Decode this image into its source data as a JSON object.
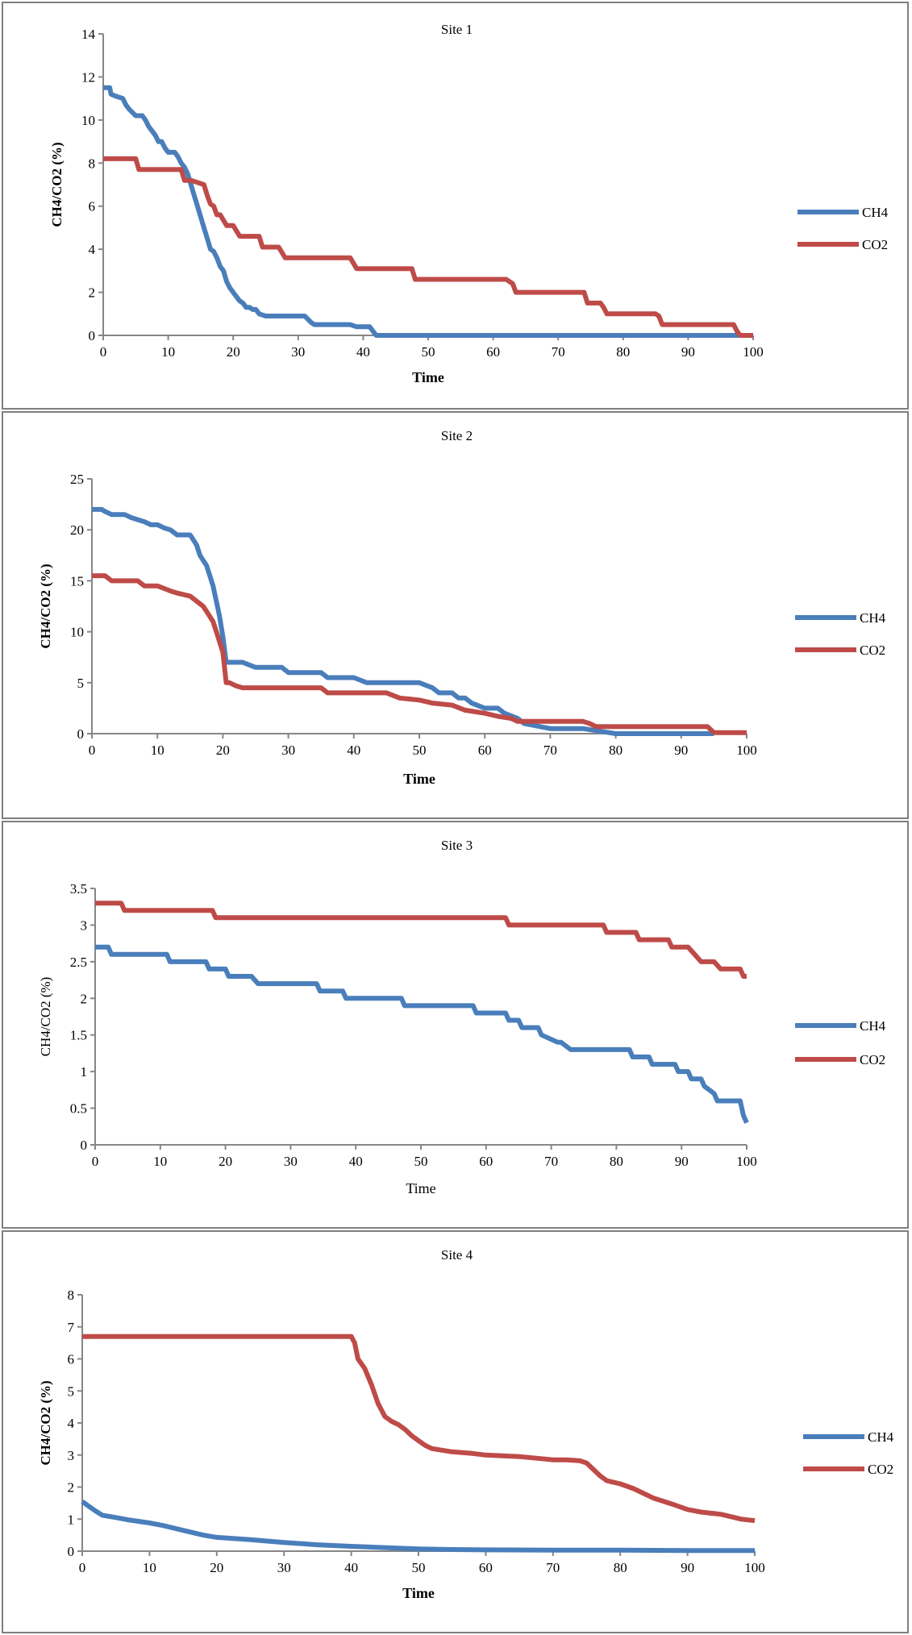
{
  "chart_data": [
    {
      "type": "line",
      "title": "Site 1",
      "xlabel": "Time",
      "ylabel": "CH4/CO2 (%)",
      "label_bold": true,
      "xlim": [
        0,
        100
      ],
      "ylim": [
        0,
        14
      ],
      "xticks": [
        0,
        10,
        20,
        30,
        40,
        50,
        60,
        70,
        80,
        90,
        100
      ],
      "yticks": [
        0,
        2,
        4,
        6,
        8,
        10,
        12,
        14
      ],
      "series": [
        {
          "name": "CH4",
          "color": "#4a7ebb",
          "x": [
            0,
            1,
            1.2,
            2,
            3,
            3.5,
            4,
            5,
            6,
            6.5,
            7,
            7.5,
            8,
            8.5,
            9,
            9.5,
            10,
            10.5,
            11,
            11.5,
            12,
            12.5,
            13,
            13.5,
            14,
            14.5,
            15,
            15.5,
            16,
            16.5,
            17,
            17.5,
            18,
            18.5,
            19,
            19.5,
            20,
            20.5,
            21,
            21.5,
            22,
            22.5,
            23,
            23.5,
            24,
            25,
            25.5,
            26,
            28,
            30,
            31,
            32,
            32.5,
            34,
            38,
            39,
            40,
            41,
            41.5,
            42,
            42.5,
            45,
            60,
            80,
            97,
            100
          ],
          "y": [
            11.5,
            11.5,
            11.2,
            11.1,
            11.0,
            10.7,
            10.5,
            10.2,
            10.2,
            10.0,
            9.7,
            9.5,
            9.3,
            9.0,
            9.0,
            8.7,
            8.5,
            8.5,
            8.5,
            8.3,
            8.0,
            7.8,
            7.5,
            7.0,
            6.5,
            6.0,
            5.5,
            5.0,
            4.5,
            4.0,
            3.9,
            3.6,
            3.2,
            3.0,
            2.5,
            2.2,
            2.0,
            1.8,
            1.6,
            1.5,
            1.3,
            1.3,
            1.2,
            1.2,
            1.0,
            0.9,
            0.9,
            0.9,
            0.9,
            0.9,
            0.9,
            0.6,
            0.5,
            0.5,
            0.5,
            0.4,
            0.4,
            0.4,
            0.2,
            0.0,
            0.0,
            0.0,
            0.0,
            0.0,
            0.0,
            0.0
          ]
        },
        {
          "name": "CO2",
          "color": "#be4b48",
          "x": [
            0,
            5,
            5.5,
            11,
            12,
            12.5,
            13.5,
            14.5,
            15.5,
            16,
            16.5,
            17,
            17.5,
            18,
            19,
            20,
            21,
            22,
            22.5,
            24,
            24.5,
            26,
            27,
            28,
            30,
            35,
            38,
            39,
            40,
            45,
            47.5,
            48,
            50,
            55,
            62,
            62.5,
            63,
            63.5,
            64,
            70,
            74,
            74.5,
            76,
            76.5,
            77,
            77.5,
            80,
            85,
            85.5,
            86,
            90,
            95,
            97,
            97.5,
            98,
            100
          ],
          "y": [
            8.2,
            8.2,
            7.7,
            7.7,
            7.7,
            7.2,
            7.2,
            7.1,
            7.0,
            6.5,
            6.1,
            6.0,
            5.6,
            5.6,
            5.1,
            5.1,
            4.6,
            4.6,
            4.6,
            4.6,
            4.1,
            4.1,
            4.1,
            3.6,
            3.6,
            3.6,
            3.6,
            3.1,
            3.1,
            3.1,
            3.1,
            2.6,
            2.6,
            2.6,
            2.6,
            2.5,
            2.4,
            2.0,
            2.0,
            2.0,
            2.0,
            1.5,
            1.5,
            1.5,
            1.3,
            1.0,
            1.0,
            1.0,
            0.9,
            0.5,
            0.5,
            0.5,
            0.5,
            0.2,
            0.0,
            0.0
          ]
        }
      ]
    },
    {
      "type": "line",
      "title": "Site 2",
      "xlabel": "Time",
      "ylabel": "CH4/CO2 (%)",
      "label_bold": true,
      "xlim": [
        0,
        100
      ],
      "ylim": [
        0,
        25
      ],
      "xticks": [
        0,
        10,
        20,
        30,
        40,
        50,
        60,
        70,
        80,
        90,
        100
      ],
      "yticks": [
        0,
        5,
        10,
        15,
        20,
        25
      ],
      "series": [
        {
          "name": "CH4",
          "color": "#4a7ebb",
          "x": [
            0,
            1.5,
            2,
            3,
            5,
            6,
            7,
            8,
            9,
            10,
            11,
            12,
            13,
            14,
            15,
            15.5,
            16,
            16.5,
            17,
            17.5,
            18,
            18.5,
            19,
            19.5,
            20,
            20.5,
            21,
            23,
            25,
            27,
            29,
            30,
            33,
            35,
            36,
            38,
            40,
            42,
            45,
            48,
            50,
            52,
            53,
            55,
            56,
            57,
            58,
            60,
            62,
            63,
            65,
            66,
            70,
            75,
            80,
            90,
            95
          ],
          "y": [
            22,
            22,
            21.8,
            21.5,
            21.5,
            21.2,
            21.0,
            20.8,
            20.5,
            20.5,
            20.2,
            20.0,
            19.5,
            19.5,
            19.5,
            19.0,
            18.5,
            17.5,
            17.0,
            16.5,
            15.5,
            14.5,
            13.0,
            11.5,
            9.5,
            7.0,
            7.0,
            7.0,
            6.5,
            6.5,
            6.5,
            6.0,
            6.0,
            6.0,
            5.5,
            5.5,
            5.5,
            5.0,
            5.0,
            5.0,
            5.0,
            4.5,
            4.0,
            4.0,
            3.5,
            3.5,
            3.0,
            2.5,
            2.5,
            2.0,
            1.5,
            1.0,
            0.5,
            0.5,
            0.0,
            0.0,
            0.0
          ]
        },
        {
          "name": "CO2",
          "color": "#be4b48",
          "x": [
            0,
            2,
            3,
            7,
            8,
            10,
            12,
            13,
            15,
            16,
            17,
            17.5,
            18,
            18.5,
            19,
            19.5,
            20,
            20.5,
            21,
            22,
            23,
            25,
            30,
            35,
            36,
            40,
            45,
            47,
            50,
            52,
            55,
            57,
            60,
            62,
            64,
            65,
            70,
            75,
            76,
            77,
            80,
            90,
            94,
            95,
            100
          ],
          "y": [
            15.5,
            15.5,
            15.0,
            15.0,
            14.5,
            14.5,
            14.0,
            13.8,
            13.5,
            13.0,
            12.5,
            12.0,
            11.5,
            11.0,
            10.0,
            9.0,
            8.0,
            5.0,
            5.0,
            4.7,
            4.5,
            4.5,
            4.5,
            4.5,
            4.0,
            4.0,
            4.0,
            3.5,
            3.3,
            3.0,
            2.8,
            2.3,
            2.0,
            1.7,
            1.5,
            1.2,
            1.2,
            1.2,
            1.0,
            0.7,
            0.7,
            0.7,
            0.7,
            0.1,
            0.1
          ]
        }
      ]
    },
    {
      "type": "line",
      "title": "Site 3",
      "xlabel": "Time",
      "ylabel": "CH4/CO2 (%)",
      "label_bold": false,
      "xlim": [
        0,
        100
      ],
      "ylim": [
        0,
        3.5
      ],
      "xticks": [
        0,
        10,
        20,
        30,
        40,
        50,
        60,
        70,
        80,
        90,
        100
      ],
      "yticks": [
        "0",
        "0.5",
        "1",
        "1.5",
        "2",
        "2.5",
        "3",
        "3.5"
      ],
      "series": [
        {
          "name": "CH4",
          "color": "#4a7ebb",
          "x": [
            0,
            2,
            2.5,
            10,
            11,
            11.5,
            17,
            17.5,
            20,
            20.5,
            24,
            25,
            34,
            34.5,
            38,
            38.5,
            47,
            47.5,
            58,
            58.5,
            63,
            63.5,
            65,
            65.5,
            68,
            68.5,
            71,
            71.5,
            73,
            73.5,
            82,
            82.5,
            85,
            85.5,
            89,
            89.5,
            91,
            91.5,
            93,
            93.5,
            95,
            95.5,
            99,
            99.5,
            100
          ],
          "y": [
            2.7,
            2.7,
            2.6,
            2.6,
            2.6,
            2.5,
            2.5,
            2.4,
            2.4,
            2.3,
            2.3,
            2.2,
            2.2,
            2.1,
            2.1,
            2.0,
            2.0,
            1.9,
            1.9,
            1.8,
            1.8,
            1.7,
            1.7,
            1.6,
            1.6,
            1.5,
            1.4,
            1.4,
            1.3,
            1.3,
            1.3,
            1.2,
            1.2,
            1.1,
            1.1,
            1.0,
            1.0,
            0.9,
            0.9,
            0.8,
            0.7,
            0.6,
            0.6,
            0.4,
            0.3
          ]
        },
        {
          "name": "CO2",
          "color": "#be4b48",
          "x": [
            0,
            4,
            4.5,
            18,
            18.5,
            63,
            63.5,
            78,
            78.5,
            83,
            83.5,
            88,
            88.5,
            90,
            91,
            92,
            93,
            94,
            95,
            96,
            98,
            99,
            99.5,
            100
          ],
          "y": [
            3.3,
            3.3,
            3.2,
            3.2,
            3.1,
            3.1,
            3.0,
            3.0,
            2.9,
            2.9,
            2.8,
            2.8,
            2.7,
            2.7,
            2.7,
            2.6,
            2.5,
            2.5,
            2.5,
            2.4,
            2.4,
            2.4,
            2.3,
            2.3
          ]
        }
      ]
    },
    {
      "type": "line",
      "title": "Site 4",
      "xlabel": "Time",
      "ylabel": "CH4/CO2 (%)",
      "label_bold": true,
      "xlim": [
        0,
        100
      ],
      "ylim": [
        0,
        8
      ],
      "xticks": [
        0,
        10,
        20,
        30,
        40,
        50,
        60,
        70,
        80,
        90,
        100
      ],
      "yticks": [
        0,
        1,
        2,
        3,
        4,
        5,
        6,
        7,
        8
      ],
      "series": [
        {
          "name": "CH4",
          "color": "#4a7ebb",
          "x": [
            0,
            1,
            2,
            3,
            5,
            7,
            10,
            12,
            15,
            18,
            20,
            25,
            30,
            35,
            40,
            45,
            50,
            55,
            60,
            70,
            80,
            90,
            100
          ],
          "y": [
            1.55,
            1.4,
            1.25,
            1.12,
            1.05,
            0.97,
            0.88,
            0.8,
            0.65,
            0.5,
            0.43,
            0.36,
            0.27,
            0.2,
            0.15,
            0.11,
            0.07,
            0.05,
            0.04,
            0.03,
            0.03,
            0.02,
            0.02
          ]
        },
        {
          "name": "CO2",
          "color": "#be4b48",
          "x": [
            0,
            10,
            20,
            30,
            39,
            40,
            40.5,
            41,
            42,
            43,
            44,
            45,
            46,
            47,
            48,
            49,
            50,
            51,
            52,
            55,
            58,
            60,
            65,
            70,
            72,
            74,
            75,
            76,
            77,
            78,
            80,
            82,
            85,
            88,
            90,
            92,
            95,
            98,
            100
          ],
          "y": [
            6.7,
            6.7,
            6.7,
            6.7,
            6.7,
            6.7,
            6.5,
            6.0,
            5.7,
            5.2,
            4.6,
            4.2,
            4.05,
            3.95,
            3.8,
            3.6,
            3.45,
            3.3,
            3.2,
            3.1,
            3.05,
            3.0,
            2.95,
            2.85,
            2.85,
            2.82,
            2.75,
            2.55,
            2.35,
            2.2,
            2.1,
            1.95,
            1.65,
            1.45,
            1.3,
            1.22,
            1.15,
            1.0,
            0.95
          ]
        }
      ]
    }
  ]
}
